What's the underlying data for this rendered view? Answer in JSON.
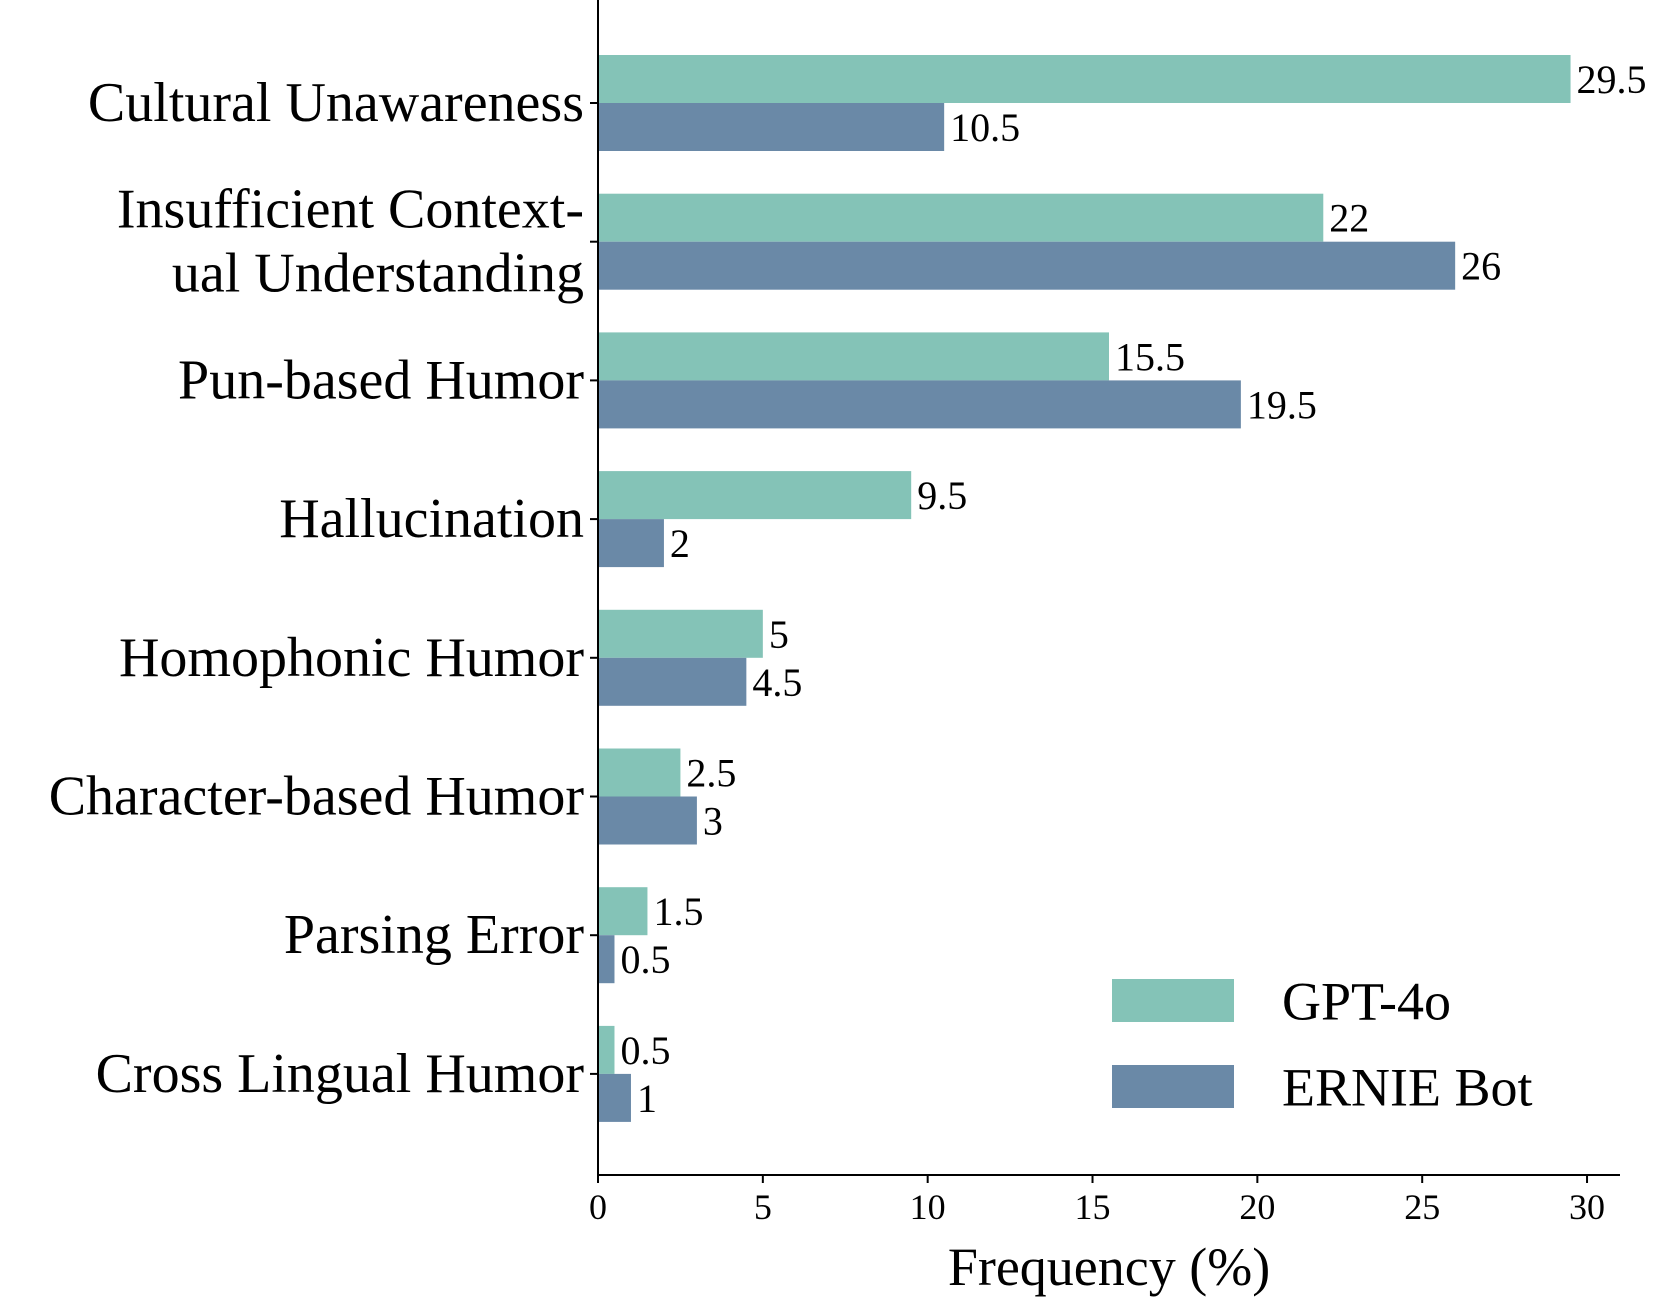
{
  "chart_data": {
    "type": "bar",
    "orientation": "horizontal",
    "categories": [
      [
        "Cultural Unawareness"
      ],
      [
        "Insufficient Context-",
        "ual Understanding"
      ],
      [
        "Pun-based Humor"
      ],
      [
        "Hallucination"
      ],
      [
        "Homophonic Humor"
      ],
      [
        "Character-based Humor"
      ],
      [
        "Parsing Error"
      ],
      [
        "Cross Lingual Humor"
      ]
    ],
    "series": [
      {
        "name": "GPT-4o",
        "color": "#84c3b7",
        "values": [
          29.5,
          22,
          15.5,
          9.5,
          5,
          2.5,
          1.5,
          0.5
        ],
        "labels": [
          "29.5",
          "22",
          "15.5",
          "9.5",
          "5",
          "2.5",
          "1.5",
          "0.5"
        ]
      },
      {
        "name": "ERNIE Bot",
        "color": "#6a89a7",
        "values": [
          10.5,
          26,
          19.5,
          2,
          4.5,
          3,
          0.5,
          1
        ],
        "labels": [
          "10.5",
          "26",
          "19.5",
          "2",
          "4.5",
          "3",
          "0.5",
          "1"
        ]
      }
    ],
    "xlabel": "Frequency (%)",
    "ylabel": "",
    "xlim": [
      0,
      31
    ],
    "xticks": [
      0,
      5,
      10,
      15,
      20,
      25,
      30
    ],
    "xtick_labels": [
      "0",
      "5",
      "10",
      "15",
      "20",
      "25",
      "30"
    ],
    "grid": false,
    "legend_position": "bottom-right"
  }
}
